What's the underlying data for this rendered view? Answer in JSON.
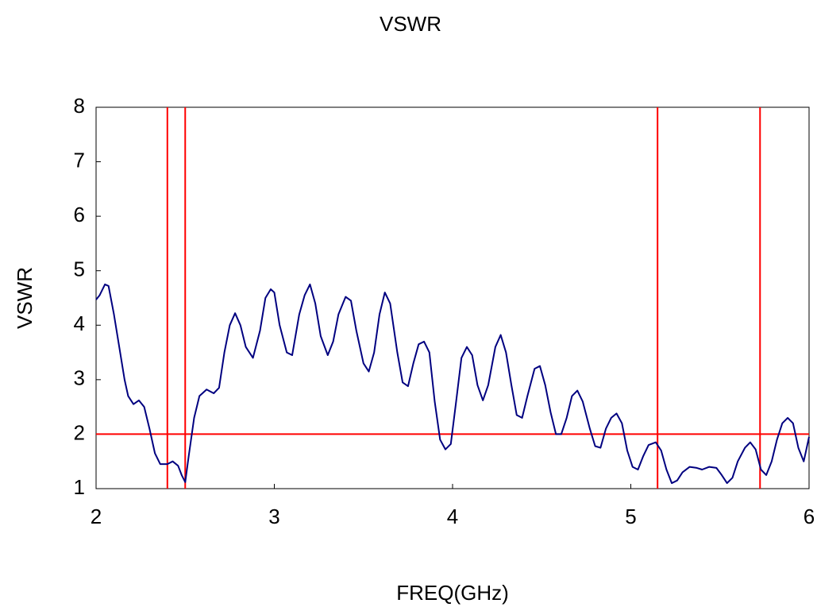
{
  "chart_data": {
    "type": "line",
    "title": "VSWR",
    "x_label": "FREQ(GHz)",
    "y_label": "VSWR",
    "xlim": [
      2,
      6
    ],
    "xticks": [
      2,
      3,
      4,
      5,
      6
    ],
    "ylim": [
      1,
      8
    ],
    "yticks": [
      1,
      2,
      3,
      4,
      5,
      6,
      7,
      8
    ],
    "reference_lines": {
      "color": "#ff0000",
      "x": [
        2.4,
        2.5,
        5.15,
        5.725
      ],
      "y": [
        2
      ]
    },
    "series": [
      {
        "name": "VSWR",
        "color": "#000080",
        "x": [
          2.0,
          2.02,
          2.05,
          2.07,
          2.1,
          2.13,
          2.16,
          2.18,
          2.21,
          2.24,
          2.27,
          2.3,
          2.33,
          2.36,
          2.4,
          2.43,
          2.46,
          2.48,
          2.5,
          2.52,
          2.55,
          2.58,
          2.62,
          2.66,
          2.69,
          2.72,
          2.75,
          2.78,
          2.81,
          2.84,
          2.88,
          2.92,
          2.95,
          2.98,
          3.0,
          3.03,
          3.07,
          3.1,
          3.14,
          3.17,
          3.2,
          3.23,
          3.26,
          3.3,
          3.33,
          3.36,
          3.4,
          3.43,
          3.46,
          3.5,
          3.53,
          3.56,
          3.59,
          3.62,
          3.65,
          3.69,
          3.72,
          3.75,
          3.78,
          3.81,
          3.84,
          3.87,
          3.9,
          3.93,
          3.96,
          3.99,
          4.02,
          4.05,
          4.08,
          4.11,
          4.14,
          4.17,
          4.2,
          4.24,
          4.27,
          4.3,
          4.33,
          4.36,
          4.39,
          4.42,
          4.46,
          4.49,
          4.52,
          4.55,
          4.58,
          4.61,
          4.64,
          4.67,
          4.7,
          4.73,
          4.77,
          4.8,
          4.83,
          4.86,
          4.89,
          4.92,
          4.95,
          4.98,
          5.01,
          5.04,
          5.07,
          5.1,
          5.14,
          5.17,
          5.2,
          5.23,
          5.26,
          5.29,
          5.33,
          5.37,
          5.4,
          5.44,
          5.48,
          5.51,
          5.54,
          5.57,
          5.6,
          5.64,
          5.67,
          5.7,
          5.73,
          5.76,
          5.79,
          5.82,
          5.85,
          5.88,
          5.91,
          5.94,
          5.97,
          6.0
        ],
        "values": [
          4.47,
          4.55,
          4.75,
          4.72,
          4.2,
          3.6,
          3.0,
          2.7,
          2.55,
          2.62,
          2.5,
          2.1,
          1.65,
          1.45,
          1.45,
          1.5,
          1.42,
          1.25,
          1.12,
          1.6,
          2.3,
          2.7,
          2.82,
          2.75,
          2.85,
          3.5,
          4.0,
          4.22,
          4.0,
          3.6,
          3.4,
          3.9,
          4.5,
          4.66,
          4.6,
          4.0,
          3.5,
          3.45,
          4.2,
          4.55,
          4.75,
          4.4,
          3.8,
          3.45,
          3.7,
          4.2,
          4.52,
          4.45,
          3.9,
          3.3,
          3.15,
          3.5,
          4.2,
          4.6,
          4.4,
          3.5,
          2.95,
          2.88,
          3.3,
          3.65,
          3.7,
          3.5,
          2.6,
          1.9,
          1.72,
          1.82,
          2.6,
          3.4,
          3.6,
          3.45,
          2.9,
          2.62,
          2.9,
          3.6,
          3.82,
          3.5,
          2.9,
          2.35,
          2.3,
          2.7,
          3.2,
          3.25,
          2.9,
          2.4,
          2.0,
          2.0,
          2.3,
          2.7,
          2.8,
          2.6,
          2.1,
          1.78,
          1.75,
          2.1,
          2.3,
          2.38,
          2.2,
          1.7,
          1.4,
          1.35,
          1.6,
          1.8,
          1.85,
          1.7,
          1.35,
          1.1,
          1.15,
          1.3,
          1.4,
          1.38,
          1.35,
          1.4,
          1.38,
          1.25,
          1.1,
          1.2,
          1.5,
          1.75,
          1.85,
          1.72,
          1.35,
          1.25,
          1.5,
          1.9,
          2.2,
          2.3,
          2.2,
          1.75,
          1.5,
          1.95
        ]
      }
    ]
  }
}
